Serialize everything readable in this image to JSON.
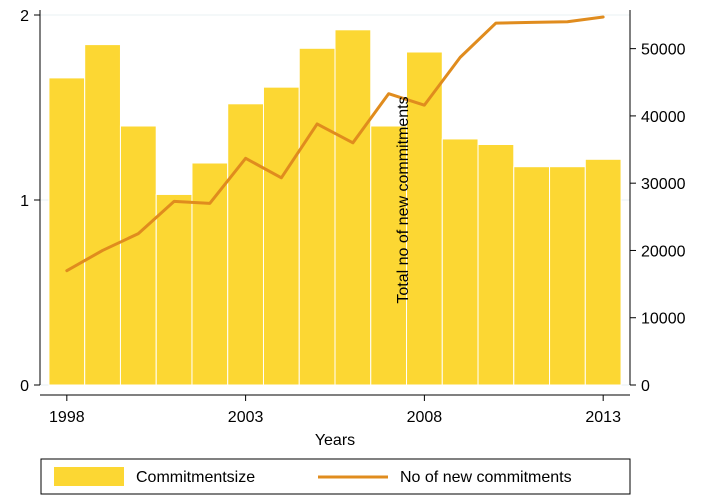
{
  "chart_data": {
    "type": "bar",
    "xlabel": "Years",
    "y2label": "Total no of new commitments",
    "x_ticks": [
      "1998",
      "2003",
      "2008",
      "2013"
    ],
    "y_ticks": [
      "0",
      "1",
      "2"
    ],
    "y2_ticks": [
      "0",
      "10000",
      "20000",
      "30000",
      "40000",
      "50000"
    ],
    "ylim": [
      0,
      2.0
    ],
    "y2lim": [
      0,
      55000
    ],
    "xlim": [
      1997.25,
      2013.75
    ],
    "grid": true,
    "legend_position": "bottom",
    "x": [
      1998,
      1999,
      2000,
      2001,
      2002,
      2003,
      2004,
      2005,
      2006,
      2007,
      2008,
      2009,
      2010,
      2011,
      2012,
      2013
    ],
    "series": [
      {
        "name": "Commitmentsize",
        "type": "bar",
        "axis": "left",
        "color": "#fcd733",
        "values": [
          1.66,
          1.84,
          1.4,
          1.03,
          1.2,
          1.52,
          1.61,
          1.82,
          1.92,
          1.4,
          1.8,
          1.33,
          1.3,
          1.18,
          1.18,
          1.22
        ]
      },
      {
        "name": "No of new commitments",
        "type": "line",
        "axis": "right",
        "color": "#e08c1e",
        "values": [
          17000,
          20000,
          22500,
          27300,
          27000,
          33700,
          30800,
          38800,
          36000,
          43300,
          41600,
          48700,
          53800,
          53900,
          54000,
          54700
        ]
      }
    ]
  }
}
